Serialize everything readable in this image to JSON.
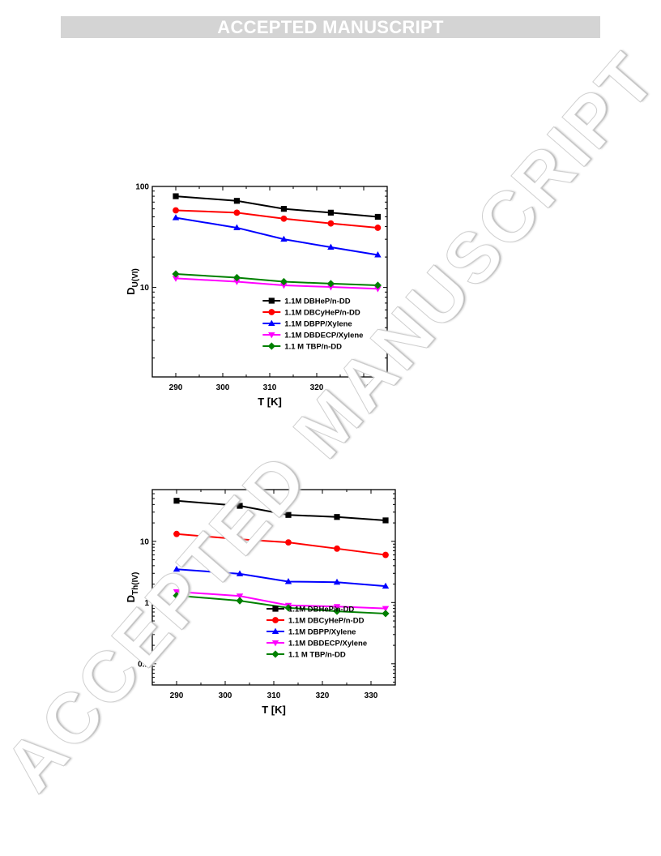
{
  "header": {
    "banner_text": "ACCEPTED MANUSCRIPT"
  },
  "watermark": {
    "text": "ACCEPTED MANUSCRIPT"
  },
  "colors": {
    "DBHeP": "#000000",
    "DBCyHeP": "#ff0000",
    "DBPP": "#0000ff",
    "DBDECP": "#ff00ff",
    "TBP": "#008000"
  },
  "chart_data": [
    {
      "type": "line",
      "title": "",
      "xlabel": "T [K]",
      "ylabel_main": "D",
      "ylabel_sub": "U(VI)",
      "yscale": "log",
      "xlim": [
        285,
        335
      ],
      "ylim": [
        1.3,
        100
      ],
      "x_ticks": [
        290,
        300,
        310,
        320,
        330
      ],
      "y_ticks": [
        10,
        100
      ],
      "y_tick_labels": [
        "10",
        "100"
      ],
      "legend_position": "bottom-right",
      "x": [
        290,
        303,
        313,
        323,
        333
      ],
      "series": [
        {
          "name": "1.1M DBHeP/n-DD",
          "marker": "square",
          "color": "#000000",
          "values": [
            80,
            72,
            60,
            55,
            50
          ]
        },
        {
          "name": "1.1M DBCyHeP/n-DD",
          "marker": "circle",
          "color": "#ff0000",
          "values": [
            58,
            55,
            48,
            43,
            39
          ]
        },
        {
          "name": "1.1M DBPP/Xylene",
          "marker": "triangle-up",
          "color": "#0000ff",
          "values": [
            49,
            39,
            30,
            25,
            21
          ]
        },
        {
          "name": "1.1M DBDECP/Xylene",
          "marker": "triangle-down",
          "color": "#ff00ff",
          "values": [
            12.3,
            11.4,
            10.5,
            10.1,
            9.7
          ]
        },
        {
          "name": "1.1 M TBP/n-DD",
          "marker": "diamond",
          "color": "#008000",
          "values": [
            13.6,
            12.5,
            11.4,
            10.9,
            10.5
          ]
        }
      ]
    },
    {
      "type": "line",
      "title": "",
      "xlabel": "T [K]",
      "ylabel_main": "D",
      "ylabel_sub": "Th(IV)",
      "yscale": "log",
      "xlim": [
        285,
        335
      ],
      "ylim": [
        0.045,
        70
      ],
      "x_ticks": [
        290,
        300,
        310,
        320,
        330
      ],
      "y_ticks": [
        0.1,
        1,
        10
      ],
      "y_tick_labels": [
        "0.1",
        "1",
        "10"
      ],
      "legend_position": "bottom-right",
      "x": [
        290,
        303,
        313,
        323,
        333
      ],
      "series": [
        {
          "name": "1.1M DBHeP/n-DD",
          "marker": "square",
          "color": "#000000",
          "values": [
            46,
            38,
            27,
            25,
            22
          ]
        },
        {
          "name": "1.1M DBCyHeP/n-DD",
          "marker": "circle",
          "color": "#ff0000",
          "values": [
            13.2,
            10.8,
            9.6,
            7.6,
            6.0
          ]
        },
        {
          "name": "1.1M DBPP/Xylene",
          "marker": "triangle-up",
          "color": "#0000ff",
          "values": [
            3.5,
            2.95,
            2.2,
            2.15,
            1.85
          ]
        },
        {
          "name": "1.1M DBDECP/Xylene",
          "marker": "triangle-down",
          "color": "#ff00ff",
          "values": [
            1.5,
            1.28,
            0.9,
            0.86,
            0.8
          ]
        },
        {
          "name": "1.1 M TBP/n-DD",
          "marker": "diamond",
          "color": "#008000",
          "values": [
            1.3,
            1.07,
            0.82,
            0.72,
            0.66
          ]
        }
      ]
    }
  ]
}
